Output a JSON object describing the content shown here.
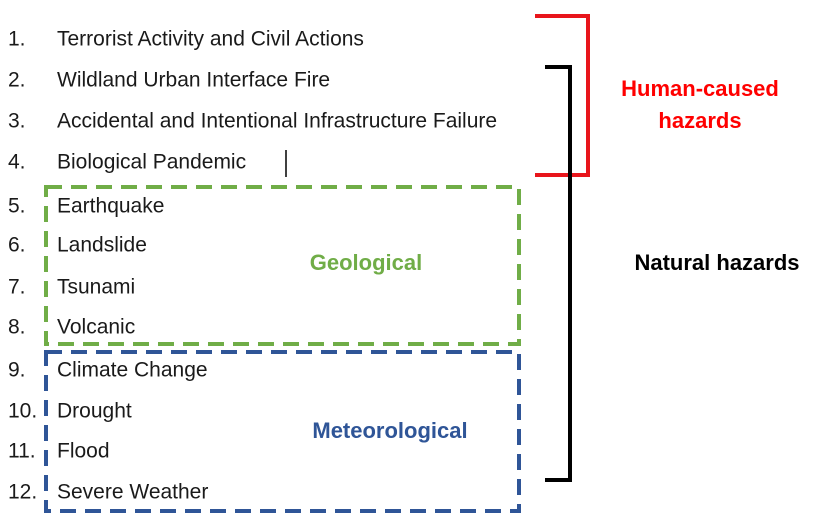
{
  "items": [
    {
      "number": "1.",
      "label": "Terrorist Activity and Civil Actions"
    },
    {
      "number": "2.",
      "label": "Wildland Urban Interface Fire"
    },
    {
      "number": "3.",
      "label": "Accidental and Intentional Infrastructure Failure"
    },
    {
      "number": "4.",
      "label": "Biological Pandemic"
    },
    {
      "number": "5.",
      "label": "Earthquake"
    },
    {
      "number": "6.",
      "label": "Landslide"
    },
    {
      "number": "7.",
      "label": "Tsunami"
    },
    {
      "number": "8.",
      "label": "Volcanic"
    },
    {
      "number": "9.",
      "label": "Climate Change"
    },
    {
      "number": "10.",
      "label": "Drought"
    },
    {
      "number": "11.",
      "label": "Flood"
    },
    {
      "number": "12.",
      "label": "Severe Weather"
    }
  ],
  "groups": {
    "human": {
      "label": [
        "Human-caused",
        "hazards"
      ]
    },
    "natural": {
      "label": "Natural hazards"
    },
    "geological": {
      "label": "Geological"
    },
    "meteorological": {
      "label": "Meteorological"
    }
  }
}
